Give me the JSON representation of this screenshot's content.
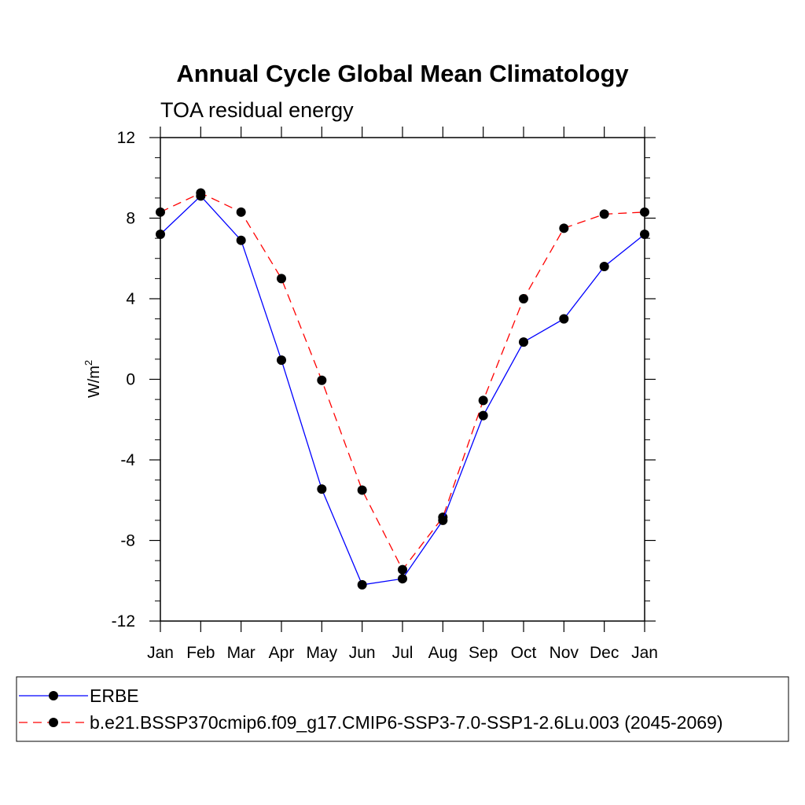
{
  "chart_data": {
    "type": "line",
    "title": "Annual Cycle Global Mean Climatology",
    "subtitle": "TOA residual energy",
    "ylabel": "W/m",
    "ylabel_superscript": "2",
    "xlabel": "",
    "categories": [
      "Jan",
      "Feb",
      "Mar",
      "Apr",
      "May",
      "Jun",
      "Jul",
      "Aug",
      "Sep",
      "Oct",
      "Nov",
      "Dec",
      "Jan"
    ],
    "ylim": [
      -12,
      12
    ],
    "yticks": [
      -12,
      -8,
      -4,
      0,
      4,
      8,
      12
    ],
    "ytick_labels": [
      "-12",
      "-8",
      "-4",
      "0",
      "4",
      "8",
      "12"
    ],
    "grid": false,
    "legend_position": "bottom",
    "series": [
      {
        "name": "ERBE",
        "color": "#0000ff",
        "dash": "solid",
        "marker": "circle",
        "values": [
          7.2,
          9.1,
          6.9,
          0.95,
          -5.45,
          -10.2,
          -9.9,
          -7.0,
          -1.8,
          1.85,
          3.0,
          5.6,
          7.2
        ]
      },
      {
        "name": "b.e21.BSSP370cmip6.f09_g17.CMIP6-SSP3-7.0-SSP1-2.6Lu.003 (2045-2069)",
        "color": "#ff0000",
        "dash": "dashed",
        "marker": "circle",
        "values": [
          8.3,
          9.25,
          8.3,
          5.0,
          -0.05,
          -5.5,
          -9.45,
          -6.85,
          -1.05,
          4.0,
          7.5,
          8.2,
          8.3
        ]
      }
    ]
  }
}
